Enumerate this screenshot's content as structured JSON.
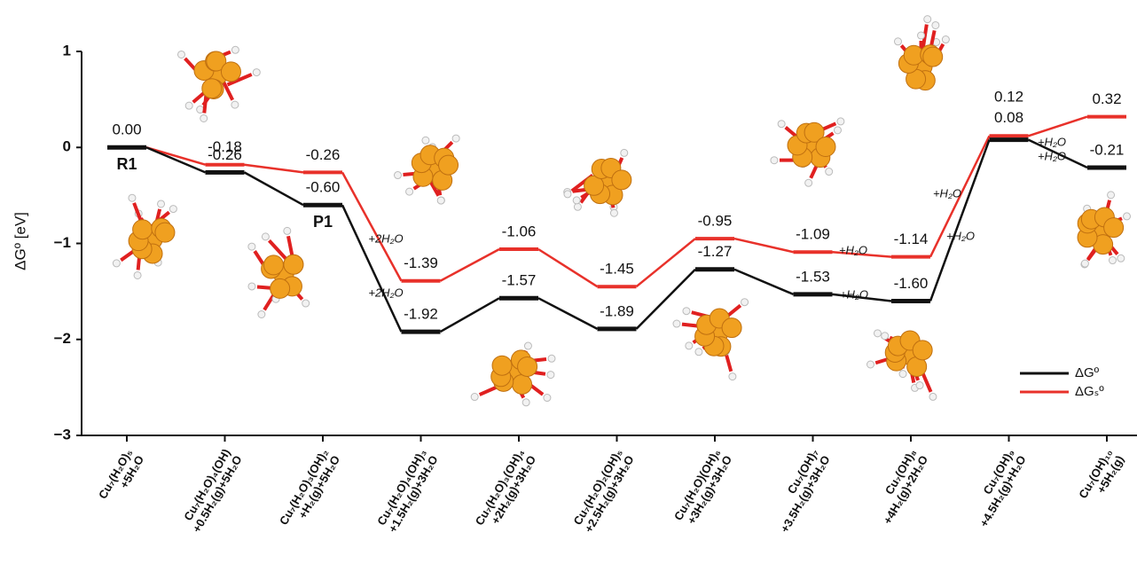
{
  "chart_data": {
    "type": "energy-level",
    "y_label": "ΔGº [eV]",
    "categories": [
      "Cu₇(H₂O)₅\n+5H₂O",
      "Cu₇(H₂O)₄(OH)\n+0.5H₂(g)+5H₂O",
      "Cu₇(H₂O)₃(OH)₂\n+H₂(g)+5H₂O",
      "Cu₇(H₂O)₄(OH)₃\n+1.5H₂(g)+3H₂O",
      "Cu₇(H₂O)₃(OH)₄\n+2H₂(g)+3H₂O",
      "Cu₇(H₂O)₂(OH)₅\n+2.5H₂(g)+3H₂O",
      "Cu₇(H₂O)(OH)₆\n+3H₂(g)+3H₂O",
      "Cu₇(OH)₇\n+3.5H₂(g)+3H₂O",
      "Cu₇(OH)₈\n+4H₂(g)+2H₂O",
      "Cu₇(OH)₉\n+4.5H₂(g)+H₂O",
      "Cu₇(OH)₁₀\n+5H₂(g)"
    ],
    "series": [
      {
        "name": "ΔGº",
        "color": "#111111",
        "values": [
          0,
          -0.26,
          -0.6,
          -1.92,
          -1.57,
          -1.89,
          -1.27,
          -1.53,
          -1.6,
          0.08,
          -0.21
        ],
        "value_labels": [
          "0.00",
          "-0.26",
          "-0.60",
          "-1.92",
          "-1.57",
          "-1.89",
          "-1.27",
          "-1.53",
          "-1.60",
          "0.08",
          "-0.21"
        ]
      },
      {
        "name": "ΔGₛº",
        "color": "#e8312a",
        "values": [
          0,
          -0.18,
          -0.26,
          -1.39,
          -1.06,
          -1.45,
          -0.95,
          -1.09,
          -1.14,
          0.12,
          0.32
        ],
        "value_labels": [
          null,
          "-0.18",
          "-0.26",
          "-1.39",
          "-1.06",
          "-1.45",
          "-0.95",
          "-1.09",
          "-1.14",
          "0.12",
          "0.32"
        ]
      }
    ],
    "ylim": [
      -3,
      1
    ],
    "yticks": [
      {
        "value": -3,
        "label": "−3"
      },
      {
        "value": -2,
        "label": "−2"
      },
      {
        "value": -1,
        "label": "−1"
      },
      0,
      1
    ],
    "annotations": [
      "R1",
      "P1",
      "+2H₂O",
      "+2H₂O",
      "+H₂O",
      "+H₂O",
      "+H₂O",
      "+H₂O",
      "+H₂O",
      "+H₂O"
    ],
    "legend": "lower right"
  }
}
